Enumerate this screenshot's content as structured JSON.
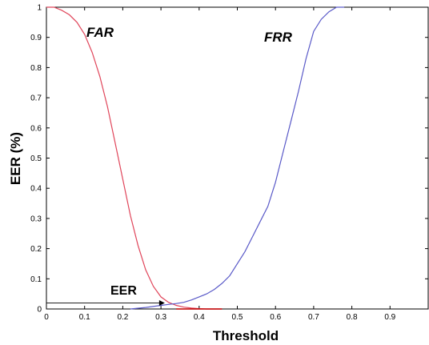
{
  "chart_data": {
    "type": "line",
    "xlabel": "Threshold",
    "ylabel": "EER (%)",
    "xlim": [
      0,
      1
    ],
    "ylim": [
      0,
      1
    ],
    "grid": false,
    "x_ticks": [
      "0",
      "0.1",
      "0.2",
      "0.3",
      "0.4",
      "0.5",
      "0.6",
      "0.7",
      "0.8",
      "0.9"
    ],
    "y_ticks": [
      "0",
      "0.1",
      "0.2",
      "0.3",
      "0.4",
      "0.5",
      "0.6",
      "0.7",
      "0.8",
      "0.9",
      "1"
    ],
    "series": [
      {
        "name": "FAR",
        "color": "#e0455a",
        "x": [
          0.0,
          0.02,
          0.04,
          0.06,
          0.08,
          0.1,
          0.12,
          0.14,
          0.16,
          0.18,
          0.2,
          0.22,
          0.24,
          0.26,
          0.28,
          0.3,
          0.32,
          0.34,
          0.36,
          0.38,
          0.4,
          0.42,
          0.44,
          0.46
        ],
        "y": [
          1.0,
          1.0,
          0.99,
          0.975,
          0.95,
          0.91,
          0.85,
          0.77,
          0.67,
          0.55,
          0.43,
          0.31,
          0.21,
          0.13,
          0.075,
          0.04,
          0.022,
          0.012,
          0.006,
          0.003,
          0.001,
          0.0,
          0.0,
          0.0
        ]
      },
      {
        "name": "FRR",
        "color": "#5a5ac8",
        "x": [
          0.22,
          0.26,
          0.3,
          0.32,
          0.34,
          0.36,
          0.38,
          0.4,
          0.42,
          0.44,
          0.46,
          0.48,
          0.5,
          0.52,
          0.54,
          0.56,
          0.58,
          0.6,
          0.62,
          0.64,
          0.66,
          0.68,
          0.7,
          0.72,
          0.74,
          0.76,
          0.78
        ],
        "y": [
          0.0,
          0.005,
          0.012,
          0.015,
          0.018,
          0.022,
          0.03,
          0.04,
          0.05,
          0.065,
          0.085,
          0.11,
          0.15,
          0.19,
          0.24,
          0.29,
          0.34,
          0.42,
          0.52,
          0.62,
          0.72,
          0.83,
          0.92,
          0.96,
          0.985,
          1.0,
          1.0
        ]
      }
    ],
    "annotations": [
      {
        "text": "FAR"
      },
      {
        "text": "FRR"
      },
      {
        "text": "EER"
      }
    ],
    "eer_marker": {
      "x": 0.31,
      "y": 0.02
    }
  }
}
